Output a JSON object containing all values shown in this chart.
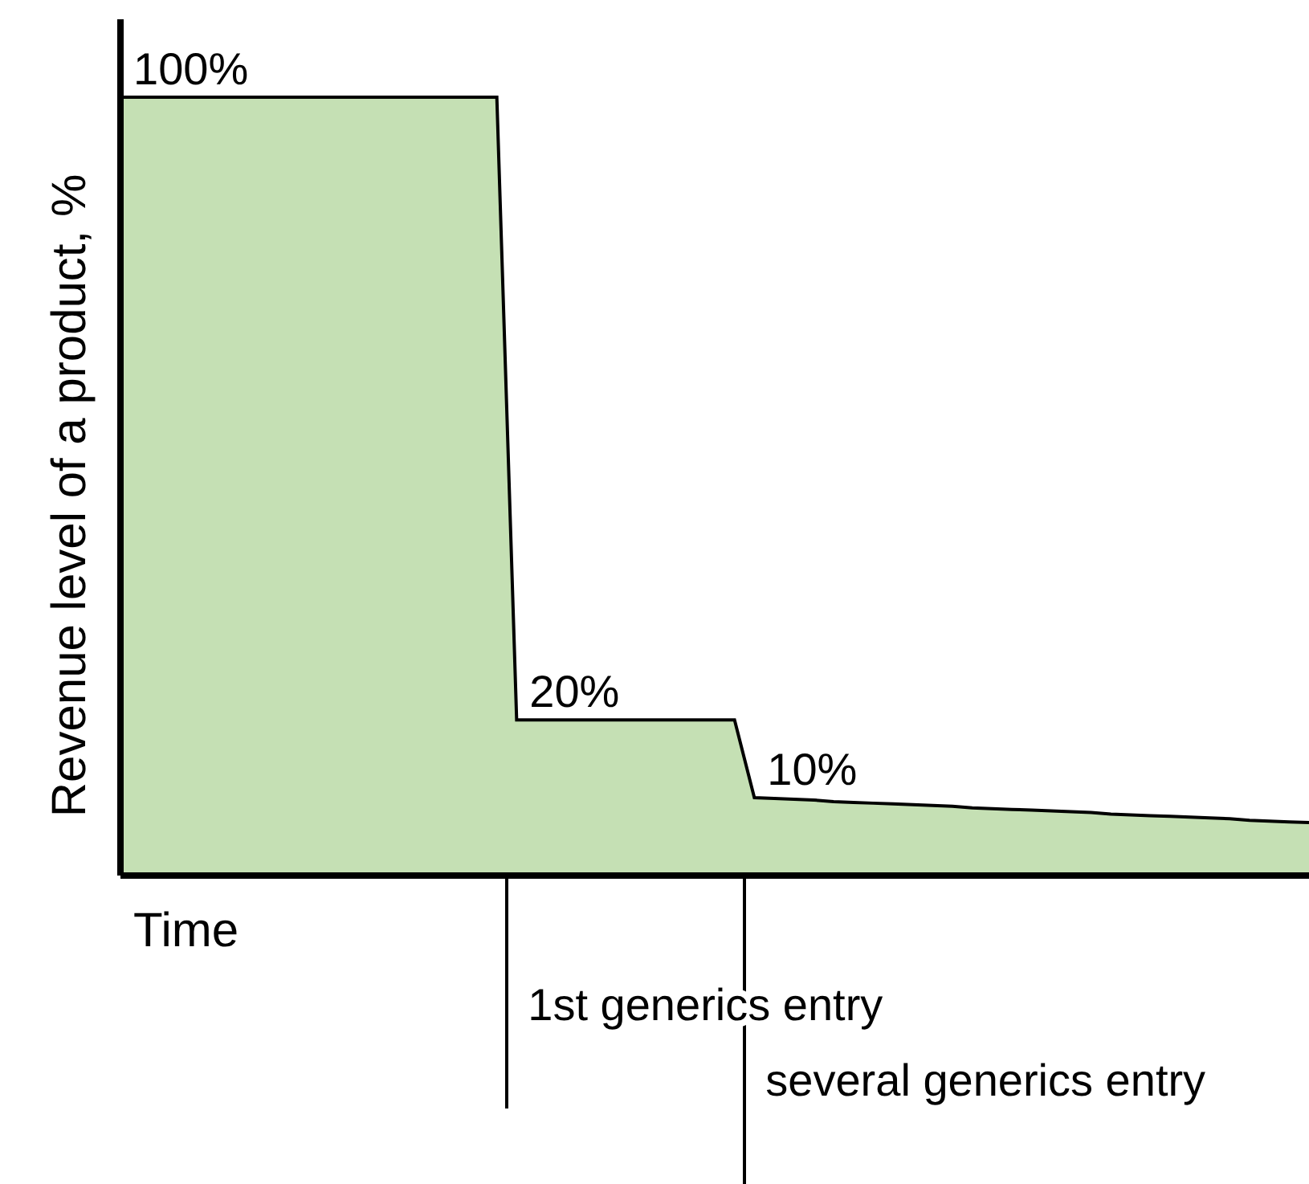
{
  "chart_data": {
    "type": "area",
    "ylabel": "Revenue level of a product, %",
    "xlabel": "Time",
    "categories": [
      null,
      null,
      null,
      null,
      null,
      null,
      null,
      null,
      null,
      null,
      null,
      null,
      null,
      null,
      null,
      null,
      null,
      null,
      null,
      null,
      null,
      null,
      null,
      null,
      null,
      null,
      null,
      null,
      null,
      null,
      null,
      null,
      null,
      null,
      null,
      null,
      null,
      null,
      null,
      null,
      null,
      null,
      null,
      null,
      null,
      null,
      null,
      null,
      null,
      null,
      null,
      null,
      null,
      null,
      null,
      null,
      null,
      null,
      null,
      null,
      null
    ],
    "values": [
      100,
      100,
      100,
      100,
      100,
      100,
      100,
      100,
      100,
      100,
      100,
      100,
      100,
      100,
      100,
      100,
      100,
      100,
      100,
      100,
      20,
      20,
      20,
      20,
      20,
      20,
      20,
      20,
      20,
      20,
      20,
      20,
      10.0,
      9.9,
      9.8,
      9.7,
      9.5,
      9.4,
      9.3,
      9.2,
      9.1,
      9.0,
      8.9,
      8.7,
      8.6,
      8.5,
      8.4,
      8.3,
      8.2,
      8.1,
      7.9,
      7.8,
      7.7,
      7.6,
      7.5,
      7.4,
      7.3,
      7.1,
      7.0,
      6.9,
      6.8
    ],
    "value_labels": [
      "100%",
      null,
      null,
      null,
      null,
      null,
      null,
      null,
      null,
      null,
      null,
      null,
      null,
      null,
      null,
      null,
      null,
      null,
      null,
      null,
      "20%",
      null,
      null,
      null,
      null,
      null,
      null,
      null,
      null,
      null,
      null,
      null,
      "10%",
      null,
      null,
      null,
      null,
      null,
      null,
      null,
      null,
      null,
      null,
      null,
      null,
      null,
      null,
      null,
      null,
      null,
      null,
      null,
      null,
      null,
      null,
      null,
      null,
      null,
      null,
      null,
      null
    ],
    "color": "#c5e0b4",
    "ylim": [
      0,
      110
    ],
    "annotations": [
      "1st generics entry",
      "several generics entry"
    ]
  }
}
